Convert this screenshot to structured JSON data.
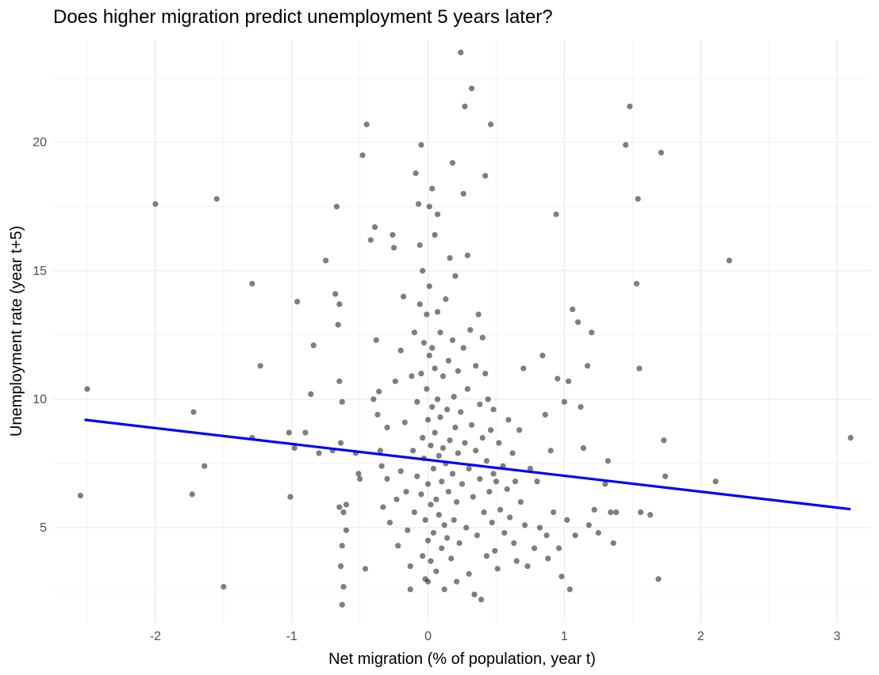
{
  "chart_data": {
    "type": "scatter",
    "title": "Does higher migration predict unemployment 5 years later?",
    "xlabel": "Net migration (% of population, year t)",
    "ylabel": "Unemployment rate (year t+5)",
    "xlim": [
      -2.75,
      3.25
    ],
    "ylim": [
      1.3,
      24.0
    ],
    "x_ticks": [
      -2,
      -1,
      0,
      1,
      2,
      3
    ],
    "x_tick_labels": [
      "-2",
      "-1",
      "0",
      "1",
      "2",
      "3"
    ],
    "y_ticks": [
      5,
      10,
      15,
      20
    ],
    "y_tick_labels": [
      "5",
      "10",
      "15",
      "20"
    ],
    "grid": true,
    "point_color": "#000000",
    "point_opacity": 0.5,
    "line_color": "#0000ff",
    "trend_line": {
      "x": [
        -2.52,
        3.1
      ],
      "y": [
        9.2,
        5.72
      ]
    },
    "points": [
      [
        -2.55,
        6.25
      ],
      [
        -2.5,
        10.4
      ],
      [
        -2.0,
        17.6
      ],
      [
        -1.72,
        9.5
      ],
      [
        -1.73,
        6.3
      ],
      [
        -1.64,
        7.4
      ],
      [
        -1.55,
        17.8
      ],
      [
        -1.5,
        2.7
      ],
      [
        -1.29,
        14.5
      ],
      [
        -1.29,
        8.5
      ],
      [
        -1.23,
        11.3
      ],
      [
        -1.02,
        8.7
      ],
      [
        -1.01,
        6.2
      ],
      [
        -0.98,
        8.1
      ],
      [
        -0.96,
        13.8
      ],
      [
        -0.9,
        8.7
      ],
      [
        -0.86,
        10.2
      ],
      [
        -0.84,
        12.1
      ],
      [
        -0.8,
        7.9
      ],
      [
        -0.75,
        15.4
      ],
      [
        -0.7,
        8.0
      ],
      [
        -0.68,
        14.1
      ],
      [
        -0.67,
        17.5
      ],
      [
        -0.66,
        12.9
      ],
      [
        -0.65,
        13.7
      ],
      [
        -0.65,
        10.7
      ],
      [
        -0.64,
        8.3
      ],
      [
        -0.63,
        9.9
      ],
      [
        -0.65,
        5.8
      ],
      [
        -0.62,
        5.6
      ],
      [
        -0.63,
        4.3
      ],
      [
        -0.64,
        3.5
      ],
      [
        -0.62,
        2.7
      ],
      [
        -0.63,
        2.0
      ],
      [
        -0.6,
        5.9
      ],
      [
        -0.6,
        4.9
      ],
      [
        -0.53,
        7.9
      ],
      [
        -0.51,
        7.1
      ],
      [
        -0.5,
        6.9
      ],
      [
        -0.48,
        19.5
      ],
      [
        -0.46,
        3.4
      ],
      [
        -0.45,
        20.7
      ],
      [
        -0.42,
        16.2
      ],
      [
        -0.4,
        10.0
      ],
      [
        -0.39,
        16.7
      ],
      [
        -0.38,
        12.3
      ],
      [
        -0.37,
        9.4
      ],
      [
        -0.36,
        10.3
      ],
      [
        -0.35,
        8.0
      ],
      [
        -0.34,
        7.4
      ],
      [
        -0.33,
        5.8
      ],
      [
        -0.3,
        8.9
      ],
      [
        -0.3,
        6.9
      ],
      [
        -0.28,
        5.2
      ],
      [
        -0.26,
        16.4
      ],
      [
        -0.25,
        15.9
      ],
      [
        -0.24,
        10.7
      ],
      [
        -0.23,
        6.1
      ],
      [
        -0.22,
        4.3
      ],
      [
        -0.2,
        11.9
      ],
      [
        -0.2,
        7.2
      ],
      [
        -0.18,
        14.0
      ],
      [
        -0.17,
        9.1
      ],
      [
        -0.16,
        6.4
      ],
      [
        -0.15,
        4.9
      ],
      [
        -0.13,
        3.5
      ],
      [
        -0.13,
        2.6
      ],
      [
        -0.12,
        10.9
      ],
      [
        -0.11,
        8.0
      ],
      [
        -0.1,
        12.6
      ],
      [
        -0.1,
        5.6
      ],
      [
        -0.09,
        18.8
      ],
      [
        -0.08,
        9.9
      ],
      [
        -0.08,
        7.0
      ],
      [
        -0.07,
        17.6
      ],
      [
        -0.06,
        16.0
      ],
      [
        -0.06,
        13.7
      ],
      [
        -0.05,
        19.9
      ],
      [
        -0.05,
        11.0
      ],
      [
        -0.05,
        6.3
      ],
      [
        -0.04,
        15.0
      ],
      [
        -0.04,
        8.5
      ],
      [
        -0.04,
        3.9
      ],
      [
        -0.03,
        12.2
      ],
      [
        -0.03,
        7.7
      ],
      [
        -0.02,
        5.3
      ],
      [
        -0.02,
        3.0
      ],
      [
        -0.01,
        13.3
      ],
      [
        -0.01,
        10.4
      ],
      [
        0.0,
        9.2
      ],
      [
        0.0,
        6.7
      ],
      [
        0.0,
        4.5
      ],
      [
        0.0,
        2.9
      ],
      [
        0.01,
        17.5
      ],
      [
        0.01,
        14.4
      ],
      [
        0.01,
        11.7
      ],
      [
        0.02,
        8.2
      ],
      [
        0.02,
        5.9
      ],
      [
        0.02,
        3.7
      ],
      [
        0.03,
        18.2
      ],
      [
        0.03,
        12.0
      ],
      [
        0.03,
        9.7
      ],
      [
        0.04,
        7.3
      ],
      [
        0.04,
        4.8
      ],
      [
        0.05,
        16.4
      ],
      [
        0.05,
        11.2
      ],
      [
        0.05,
        8.7
      ],
      [
        0.06,
        6.1
      ],
      [
        0.06,
        3.3
      ],
      [
        0.07,
        17.2
      ],
      [
        0.07,
        13.4
      ],
      [
        0.07,
        10.0
      ],
      [
        0.08,
        7.8
      ],
      [
        0.08,
        5.5
      ],
      [
        0.09,
        12.6
      ],
      [
        0.09,
        9.3
      ],
      [
        0.1,
        6.8
      ],
      [
        0.1,
        4.2
      ],
      [
        0.11,
        10.9
      ],
      [
        0.11,
        8.1
      ],
      [
        0.12,
        5.1
      ],
      [
        0.12,
        2.6
      ],
      [
        0.13,
        13.9
      ],
      [
        0.13,
        7.5
      ],
      [
        0.14,
        9.6
      ],
      [
        0.14,
        4.6
      ],
      [
        0.15,
        11.5
      ],
      [
        0.15,
        6.4
      ],
      [
        0.16,
        15.5
      ],
      [
        0.16,
        8.4
      ],
      [
        0.17,
        3.8
      ],
      [
        0.18,
        19.2
      ],
      [
        0.18,
        12.3
      ],
      [
        0.18,
        7.1
      ],
      [
        0.19,
        10.1
      ],
      [
        0.19,
        5.3
      ],
      [
        0.2,
        14.8
      ],
      [
        0.2,
        8.9
      ],
      [
        0.21,
        6.0
      ],
      [
        0.21,
        2.9
      ],
      [
        0.22,
        11.1
      ],
      [
        0.22,
        7.9
      ],
      [
        0.23,
        4.4
      ],
      [
        0.24,
        23.5
      ],
      [
        0.24,
        9.5
      ],
      [
        0.25,
        6.7
      ],
      [
        0.26,
        18.0
      ],
      [
        0.26,
        12.0
      ],
      [
        0.27,
        21.4
      ],
      [
        0.27,
        8.3
      ],
      [
        0.28,
        5.0
      ],
      [
        0.29,
        15.6
      ],
      [
        0.29,
        10.4
      ],
      [
        0.3,
        7.3
      ],
      [
        0.3,
        3.2
      ],
      [
        0.31,
        12.7
      ],
      [
        0.32,
        22.1
      ],
      [
        0.32,
        9.0
      ],
      [
        0.33,
        6.2
      ],
      [
        0.34,
        2.4
      ],
      [
        0.35,
        11.3
      ],
      [
        0.35,
        8.0
      ],
      [
        0.36,
        4.7
      ],
      [
        0.37,
        13.3
      ],
      [
        0.38,
        9.8
      ],
      [
        0.38,
        6.9
      ],
      [
        0.39,
        2.2
      ],
      [
        0.4,
        12.4
      ],
      [
        0.4,
        8.5
      ],
      [
        0.41,
        5.6
      ],
      [
        0.42,
        18.7
      ],
      [
        0.42,
        11.0
      ],
      [
        0.43,
        7.6
      ],
      [
        0.43,
        3.9
      ],
      [
        0.44,
        10.0
      ],
      [
        0.45,
        6.4
      ],
      [
        0.46,
        20.7
      ],
      [
        0.46,
        8.8
      ],
      [
        0.47,
        5.2
      ],
      [
        0.48,
        9.6
      ],
      [
        0.48,
        7.1
      ],
      [
        0.49,
        4.1
      ],
      [
        0.5,
        6.8
      ],
      [
        0.51,
        3.4
      ],
      [
        0.52,
        8.3
      ],
      [
        0.53,
        5.7
      ],
      [
        0.55,
        7.4
      ],
      [
        0.56,
        4.8
      ],
      [
        0.58,
        6.5
      ],
      [
        0.59,
        9.2
      ],
      [
        0.6,
        5.4
      ],
      [
        0.62,
        7.9
      ],
      [
        0.63,
        4.4
      ],
      [
        0.64,
        6.8
      ],
      [
        0.65,
        3.7
      ],
      [
        0.67,
        8.8
      ],
      [
        0.68,
        6.0
      ],
      [
        0.7,
        11.2
      ],
      [
        0.71,
        5.1
      ],
      [
        0.73,
        3.5
      ],
      [
        0.75,
        7.3
      ],
      [
        0.78,
        4.2
      ],
      [
        0.8,
        6.8
      ],
      [
        0.82,
        5.0
      ],
      [
        0.84,
        11.7
      ],
      [
        0.86,
        9.4
      ],
      [
        0.87,
        4.7
      ],
      [
        0.88,
        3.8
      ],
      [
        0.9,
        8.0
      ],
      [
        0.92,
        5.6
      ],
      [
        0.94,
        17.2
      ],
      [
        0.95,
        10.8
      ],
      [
        0.96,
        4.2
      ],
      [
        0.98,
        3.1
      ],
      [
        1.0,
        9.9
      ],
      [
        1.02,
        5.3
      ],
      [
        1.03,
        10.7
      ],
      [
        1.04,
        2.6
      ],
      [
        1.06,
        13.5
      ],
      [
        1.08,
        4.7
      ],
      [
        1.1,
        13.0
      ],
      [
        1.12,
        9.7
      ],
      [
        1.14,
        8.1
      ],
      [
        1.17,
        11.3
      ],
      [
        1.18,
        5.1
      ],
      [
        1.2,
        12.6
      ],
      [
        1.22,
        5.7
      ],
      [
        1.25,
        4.8
      ],
      [
        1.3,
        6.7
      ],
      [
        1.32,
        7.6
      ],
      [
        1.34,
        5.6
      ],
      [
        1.36,
        4.4
      ],
      [
        1.38,
        5.6
      ],
      [
        1.45,
        19.9
      ],
      [
        1.48,
        21.4
      ],
      [
        1.53,
        14.5
      ],
      [
        1.54,
        17.8
      ],
      [
        1.55,
        11.2
      ],
      [
        1.56,
        5.6
      ],
      [
        1.63,
        5.5
      ],
      [
        1.69,
        3.0
      ],
      [
        1.71,
        19.6
      ],
      [
        1.73,
        8.4
      ],
      [
        1.74,
        7.0
      ],
      [
        2.11,
        6.8
      ],
      [
        2.21,
        15.4
      ],
      [
        3.1,
        8.5
      ]
    ]
  }
}
